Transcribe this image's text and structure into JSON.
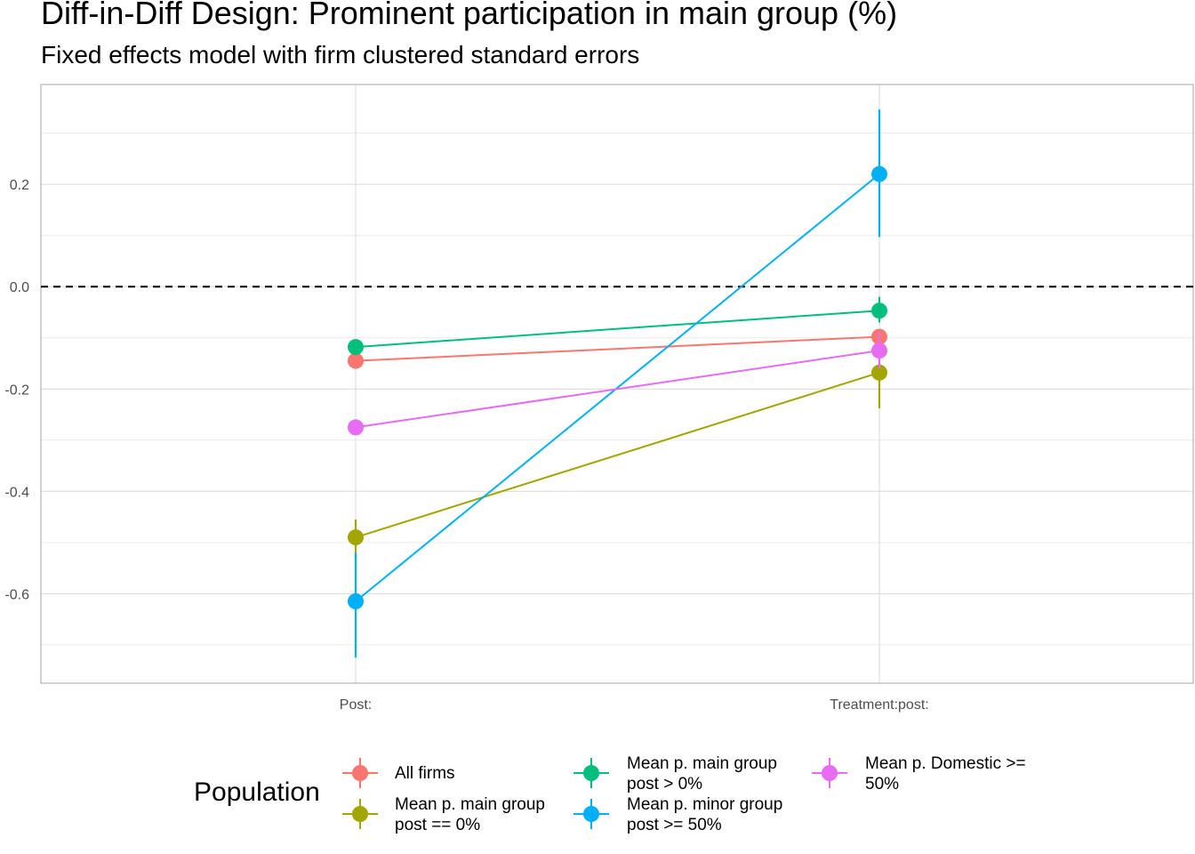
{
  "chart_data": {
    "type": "scatter",
    "title": "Diff-in-Diff Design: Prominent participation in main group (%)",
    "subtitle": "Fixed effects model with firm clustered standard errors",
    "xlabel": "",
    "ylabel": "",
    "categories": [
      "Post:",
      "Treatment:post:"
    ],
    "ylim": [
      -0.775,
      0.395
    ],
    "yticks": [
      0.2,
      0.0,
      -0.2,
      -0.4,
      -0.6
    ],
    "ytick_labels": [
      "0.2",
      "0.0",
      "-0.2",
      "-0.4",
      "-0.6"
    ],
    "reference_line": 0,
    "grid": true,
    "legend_title": "Population",
    "legend_position": "bottom",
    "series": [
      {
        "name": "All firms",
        "color": "#F8766D",
        "values": [
          -0.145,
          -0.098
        ],
        "lower": [
          -0.16,
          -0.11
        ],
        "upper": [
          -0.13,
          -0.085
        ]
      },
      {
        "name": "Mean p. main group\npost == 0%",
        "color": "#A3A500",
        "values": [
          -0.49,
          -0.168
        ],
        "lower": [
          -0.53,
          -0.238
        ],
        "upper": [
          -0.455,
          -0.145
        ]
      },
      {
        "name": "Mean p. main group\npost > 0%",
        "color": "#00BF7D",
        "values": [
          -0.118,
          -0.047
        ],
        "lower": [
          -0.13,
          -0.07
        ],
        "upper": [
          -0.106,
          -0.02
        ]
      },
      {
        "name": "Mean p. minor group\npost >= 50%",
        "color": "#00B0F6",
        "values": [
          -0.615,
          0.22
        ],
        "lower": [
          -0.725,
          0.097
        ],
        "upper": [
          -0.52,
          0.346
        ]
      },
      {
        "name": "Mean p. Domestic >=\n50%",
        "color": "#E76BF3",
        "values": [
          -0.275,
          -0.125
        ],
        "lower": [
          -0.29,
          -0.16
        ],
        "upper": [
          -0.26,
          -0.09
        ]
      }
    ]
  }
}
